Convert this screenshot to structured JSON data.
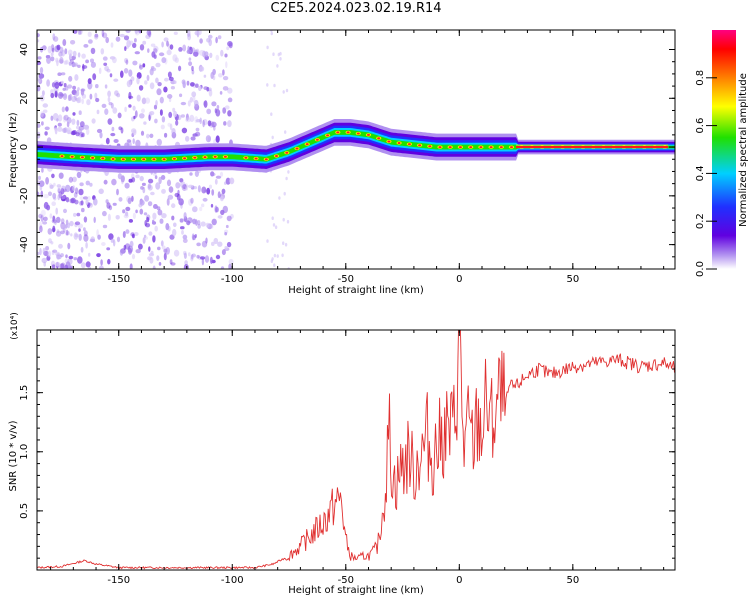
{
  "page": {
    "title": "C2E5.2024.023.02.19.R14"
  },
  "colors": {
    "snr_line": "#e03030",
    "axis": "#000000"
  },
  "chart_data": [
    {
      "type": "heatmap",
      "title": "C2E5.2024.023.02.19.R14",
      "xlabel": "Height of straight line (km)",
      "ylabel": "Frequency (Hz)",
      "xlim": [
        -186,
        95
      ],
      "ylim": [
        -50,
        48
      ],
      "xticks": [
        -150,
        -100,
        -50,
        0,
        50
      ],
      "yticks": [
        -40,
        -20,
        0,
        20,
        40
      ],
      "colorbar": {
        "label": "Normalized spectral amplitude",
        "range": [
          0,
          1
        ],
        "ticks": [
          "0.0",
          "0.2",
          "0.4",
          "0.6",
          "0.8"
        ],
        "colormap": [
          "#ffffff",
          "#b090f0",
          "#6000e0",
          "#2030ff",
          "#00d0ff",
          "#20e000",
          "#ffff00",
          "#ff8000",
          "#ff0000",
          "#ff0080"
        ]
      },
      "ridge": [
        {
          "x": -186,
          "f": -3
        },
        {
          "x": -170,
          "f": -4
        },
        {
          "x": -150,
          "f": -5
        },
        {
          "x": -130,
          "f": -5
        },
        {
          "x": -110,
          "f": -4
        },
        {
          "x": -100,
          "f": -4
        },
        {
          "x": -85,
          "f": -5
        },
        {
          "x": -75,
          "f": -2
        },
        {
          "x": -65,
          "f": 2
        },
        {
          "x": -55,
          "f": 6
        },
        {
          "x": -48,
          "f": 6
        },
        {
          "x": -40,
          "f": 5
        },
        {
          "x": -30,
          "f": 2
        },
        {
          "x": -20,
          "f": 1
        },
        {
          "x": -10,
          "f": 0
        },
        {
          "x": 0,
          "f": 0
        },
        {
          "x": 10,
          "f": 0
        },
        {
          "x": 20,
          "f": 0
        },
        {
          "x": 30,
          "f": 0
        },
        {
          "x": 60,
          "f": 0
        },
        {
          "x": 95,
          "f": 0
        }
      ]
    },
    {
      "type": "line",
      "xlabel": "Height of straight line (km)",
      "ylabel": "SNR (10 * v/v)",
      "multiplier": "(x10⁴)",
      "xlim": [
        -186,
        95
      ],
      "ylim": [
        0,
        2.03
      ],
      "xticks": [
        -150,
        -100,
        -50,
        0,
        50
      ],
      "yticks": [
        0.5,
        1.0,
        1.5
      ],
      "ytick_labels": [
        "0.5",
        "1.0",
        "1.5"
      ],
      "series": [
        {
          "x": [
            -186,
            -175,
            -165,
            -160,
            -150,
            -140,
            -130,
            -120,
            -110,
            -100,
            -90,
            -82,
            -75,
            -70,
            -65,
            -60,
            -55,
            -52,
            -50,
            -48,
            -46,
            -44,
            -42,
            -40,
            -38,
            -36,
            -34,
            -32,
            -31,
            -30,
            -28,
            -26,
            -24,
            -22,
            -20,
            -18,
            -16,
            -14,
            -12,
            -10,
            -8,
            -6,
            -4,
            -2,
            0,
            2,
            4,
            6,
            8,
            10,
            12,
            14,
            16,
            18,
            20,
            22,
            25,
            30,
            35,
            40,
            50,
            60,
            70,
            80,
            90,
            95
          ],
          "y": [
            0.02,
            0.03,
            0.08,
            0.05,
            0.02,
            0.02,
            0.02,
            0.02,
            0.02,
            0.02,
            0.02,
            0.05,
            0.12,
            0.2,
            0.3,
            0.4,
            0.55,
            0.6,
            0.25,
            0.12,
            0.1,
            0.1,
            0.12,
            0.12,
            0.15,
            0.2,
            0.45,
            0.8,
            1.25,
            0.9,
            0.7,
            0.85,
            0.9,
            1.0,
            0.8,
            0.95,
            1.0,
            1.15,
            0.9,
            1.05,
            1.1,
            1.2,
            1.15,
            1.25,
            2.0,
            1.0,
            1.2,
            1.05,
            1.25,
            1.2,
            1.4,
            1.2,
            1.35,
            1.45,
            1.35,
            1.55,
            1.55,
            1.65,
            1.7,
            1.65,
            1.72,
            1.75,
            1.78,
            1.72,
            1.75,
            1.7
          ]
        }
      ]
    }
  ]
}
